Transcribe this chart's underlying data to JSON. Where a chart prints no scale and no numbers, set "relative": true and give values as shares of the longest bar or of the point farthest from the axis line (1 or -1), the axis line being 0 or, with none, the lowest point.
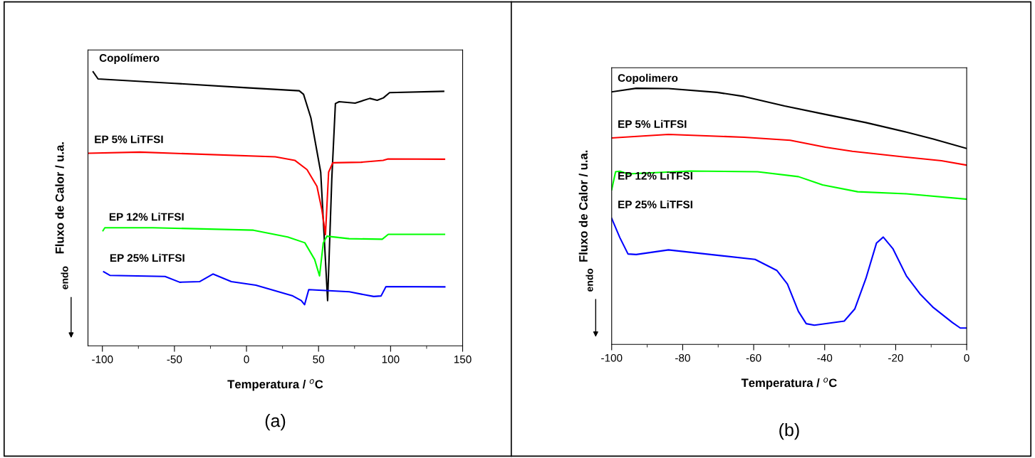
{
  "chart_data": [
    {
      "type": "line",
      "relative": true,
      "tick_labels": "x",
      "xlabel": "Temperatura / $^{o}$C",
      "ylabel": "Fluxo de Calor / u.a.",
      "xlim": [
        -110,
        150
      ],
      "xticks": [
        -100,
        -50,
        0,
        50,
        100,
        150
      ],
      "annotations": [
        "endo",
        "(a)"
      ],
      "series": [
        {
          "name": "Copolímero",
          "color": "#000000",
          "x": [
            -106.4,
            -103,
            -50,
            0,
            36.6,
            39.6,
            44.7,
            51.5,
            56.3,
            59.2,
            61.7,
            64.3,
            75.4,
            85.6,
            90.7,
            95,
            99.3,
            136.8
          ],
          "values": [
            1.0,
            0.974,
            0.958,
            0.942,
            0.931,
            0.918,
            0.832,
            0.634,
            0.165,
            0.609,
            0.884,
            0.891,
            0.886,
            0.903,
            0.896,
            0.905,
            0.924,
            0.929
          ]
        },
        {
          "name": "EP 5% LiTFSI",
          "color": "#ff0000",
          "x": [
            -109.8,
            -74,
            20,
            33.5,
            42,
            48.9,
            52.3,
            54.8,
            57,
            59.9,
            79.5,
            94.8,
            98.2,
            137.4
          ],
          "values": [
            0.703,
            0.707,
            0.69,
            0.677,
            0.643,
            0.582,
            0.497,
            0.406,
            0.634,
            0.668,
            0.67,
            0.677,
            0.682,
            0.681
          ]
        },
        {
          "name": "EP 12% LiTFSI",
          "color": "#00ff00",
          "x": [
            -99.6,
            -98.3,
            -65,
            4.8,
            28.6,
            40.5,
            47.3,
            50.7,
            53.3,
            55.8,
            71.2,
            94.2,
            98.4,
            137.4
          ],
          "values": [
            0.42,
            0.431,
            0.431,
            0.422,
            0.397,
            0.376,
            0.315,
            0.255,
            0.376,
            0.4,
            0.391,
            0.389,
            0.407,
            0.407
          ]
        },
        {
          "name": "EP 25% LiTFSI",
          "color": "#0000ff",
          "x": [
            -99.1,
            -94.8,
            -56.5,
            -46.3,
            -32.6,
            -23.3,
            -10.5,
            6.5,
            32.1,
            38,
            40.3,
            43.2,
            71.3,
            88.3,
            93.4,
            96.8,
            137.6
          ],
          "values": [
            0.27,
            0.257,
            0.253,
            0.232,
            0.234,
            0.262,
            0.234,
            0.221,
            0.182,
            0.165,
            0.15,
            0.205,
            0.197,
            0.18,
            0.182,
            0.216,
            0.215
          ]
        }
      ]
    },
    {
      "type": "line",
      "relative": true,
      "tick_labels": "x",
      "xlabel": "Temperatura / $^{o}$C",
      "ylabel": "Fluxo de Calor / u.a.",
      "xlim": [
        -100,
        0
      ],
      "xticks": [
        -100,
        -80,
        -60,
        -40,
        -20,
        0
      ],
      "annotations": [
        "endo",
        "(b)"
      ],
      "series": [
        {
          "name": "Copolimero",
          "color": "#000000",
          "x": [
            -100,
            -93.1,
            -84,
            -70.3,
            -62.7,
            -51.3,
            -39.8,
            -28.4,
            -17.0,
            -9.4,
            0
          ],
          "values": [
            0.986,
            1.0,
            0.999,
            0.984,
            0.968,
            0.931,
            0.898,
            0.866,
            0.829,
            0.802,
            0.765
          ]
        },
        {
          "name": "EP 5% LiTFSI",
          "color": "#ff0000",
          "x": [
            -100,
            -84,
            -62.7,
            -49.7,
            -39.8,
            -32.2,
            -17,
            -7.1,
            0
          ],
          "values": [
            0.806,
            0.82,
            0.809,
            0.797,
            0.77,
            0.754,
            0.731,
            0.717,
            0.7
          ]
        },
        {
          "name": "EP 12% LiTFSI",
          "color": "#00ff00",
          "x": [
            -100,
            -98.9,
            -97.7,
            -95.4,
            -77.9,
            -58.9,
            -47.4,
            -40.6,
            -30.7,
            -17,
            0
          ],
          "values": [
            0.604,
            0.674,
            0.676,
            0.666,
            0.677,
            0.674,
            0.655,
            0.623,
            0.596,
            0.588,
            0.567
          ]
        },
        {
          "name": "EP 25% LiTFSI",
          "color": "#0000ff",
          "x": [
            -100,
            -97.7,
            -95.4,
            -93.1,
            -84,
            -59.6,
            -53.5,
            -50.5,
            -47.4,
            -45.2,
            -42.9,
            -34.5,
            -31.5,
            -28.4,
            -25.4,
            -23.5,
            -20.8,
            -17,
            -13.2,
            -9.4,
            -4.0,
            -1.8,
            0
          ],
          "values": [
            0.492,
            0.417,
            0.353,
            0.351,
            0.369,
            0.332,
            0.289,
            0.236,
            0.129,
            0.081,
            0.075,
            0.091,
            0.139,
            0.257,
            0.396,
            0.419,
            0.374,
            0.268,
            0.198,
            0.144,
            0.085,
            0.064,
            0.064
          ]
        }
      ]
    }
  ]
}
